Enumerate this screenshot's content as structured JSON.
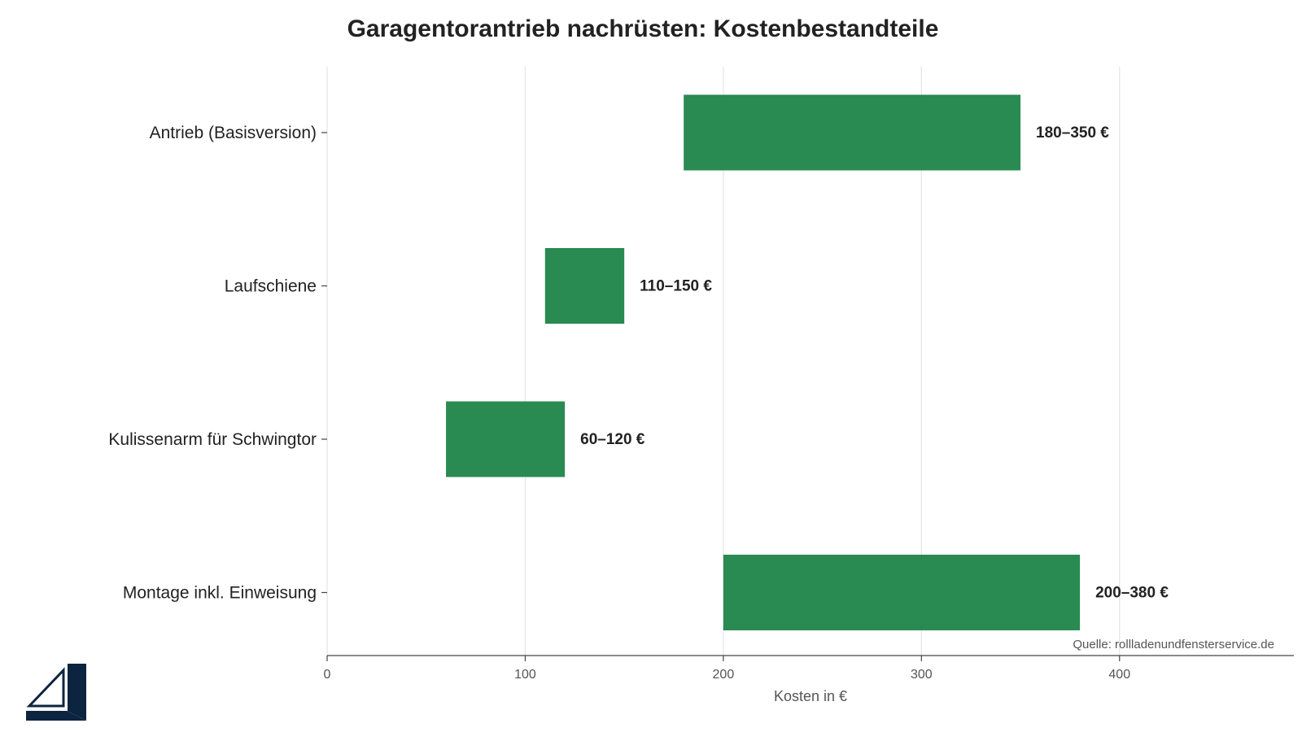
{
  "chart_data": {
    "type": "bar",
    "orientation": "horizontal",
    "title": "Garagentorantrieb nachrüsten: Kostenbestandteile",
    "xlabel": "Kosten in €",
    "ylabel": "",
    "xlim": [
      0,
      488
    ],
    "xticks": [
      0,
      100,
      200,
      300,
      400
    ],
    "grid": "vertical",
    "categories": [
      "Antrieb (Basisversion)",
      "Laufschiene",
      "Kulissenarm für Schwingtor",
      "Montage inkl. Einweisung"
    ],
    "ranges": [
      [
        180,
        350
      ],
      [
        110,
        150
      ],
      [
        60,
        120
      ],
      [
        200,
        380
      ]
    ],
    "value_labels": [
      "180–350 €",
      "110–150 €",
      "60–120 €",
      "200–380 €"
    ],
    "bar_color": "#1e8449",
    "source": "Quelle: rollladenundfensterservice.de"
  },
  "logo": {
    "name": "window-frame-logo",
    "color": "#0d2440"
  }
}
